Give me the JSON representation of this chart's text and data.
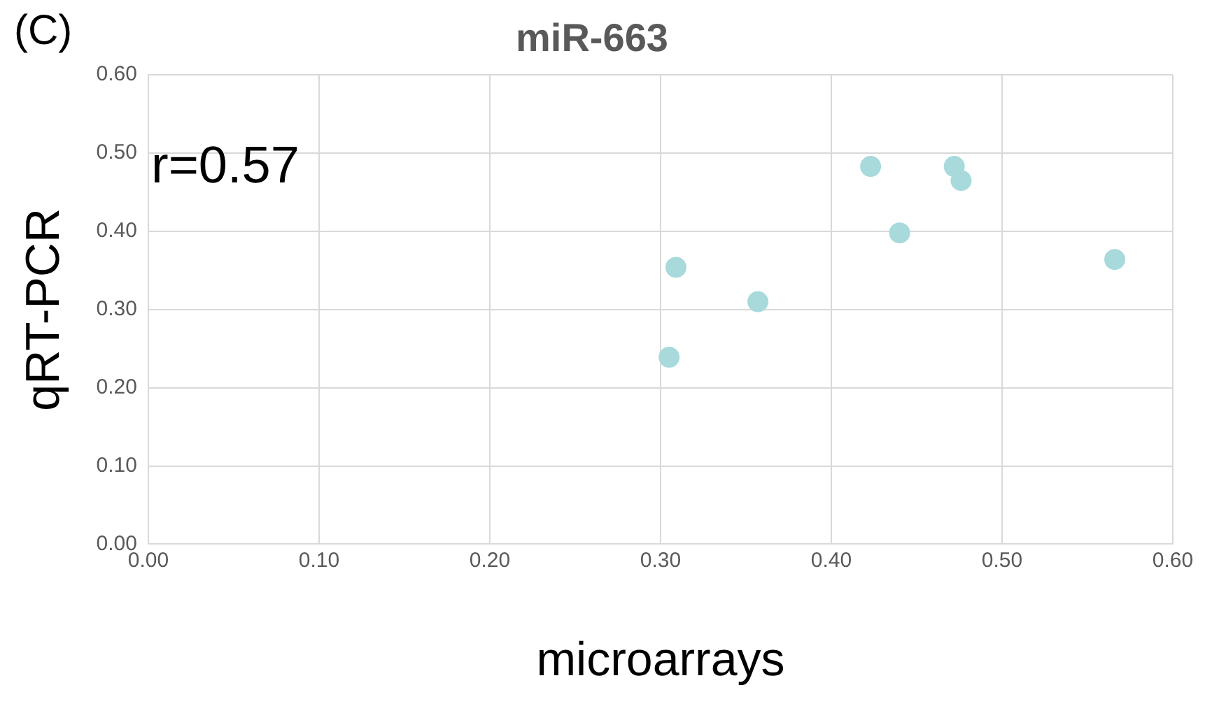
{
  "chart_data": {
    "type": "scatter",
    "title": "miR-663",
    "xlabel": "microarrays",
    "ylabel": "qRT-PCR",
    "annotations": [
      "(C)",
      "r=0.57"
    ],
    "x": [
      0.305,
      0.309,
      0.357,
      0.423,
      0.44,
      0.472,
      0.476,
      0.566
    ],
    "series": [
      {
        "color": "#a8dadc",
        "values": [
          0.239,
          0.354,
          0.31,
          0.483,
          0.398,
          0.483,
          0.465,
          0.364
        ]
      }
    ],
    "xlim": [
      0,
      0.6
    ],
    "xticks": [
      {
        "value": 0,
        "label": "0.00"
      },
      {
        "value": 0.1,
        "label": "0.10"
      },
      {
        "value": 0.2,
        "label": "0.20"
      },
      {
        "value": 0.3,
        "label": "0.30"
      },
      {
        "value": 0.4,
        "label": "0.40"
      },
      {
        "value": 0.5,
        "label": "0.50"
      },
      {
        "value": 0.6,
        "label": "0.60"
      }
    ],
    "ylim": [
      0,
      0.6
    ],
    "yticks": [
      {
        "value": 0,
        "label": "0.00"
      },
      {
        "value": 0.1,
        "label": "0.10"
      },
      {
        "value": 0.2,
        "label": "0.20"
      },
      {
        "value": 0.3,
        "label": "0.30"
      },
      {
        "value": 0.4,
        "label": "0.40"
      },
      {
        "value": 0.5,
        "label": "0.50"
      },
      {
        "value": 0.6,
        "label": "0.60"
      }
    ],
    "grid": true,
    "marker": "circle",
    "legend": false
  }
}
